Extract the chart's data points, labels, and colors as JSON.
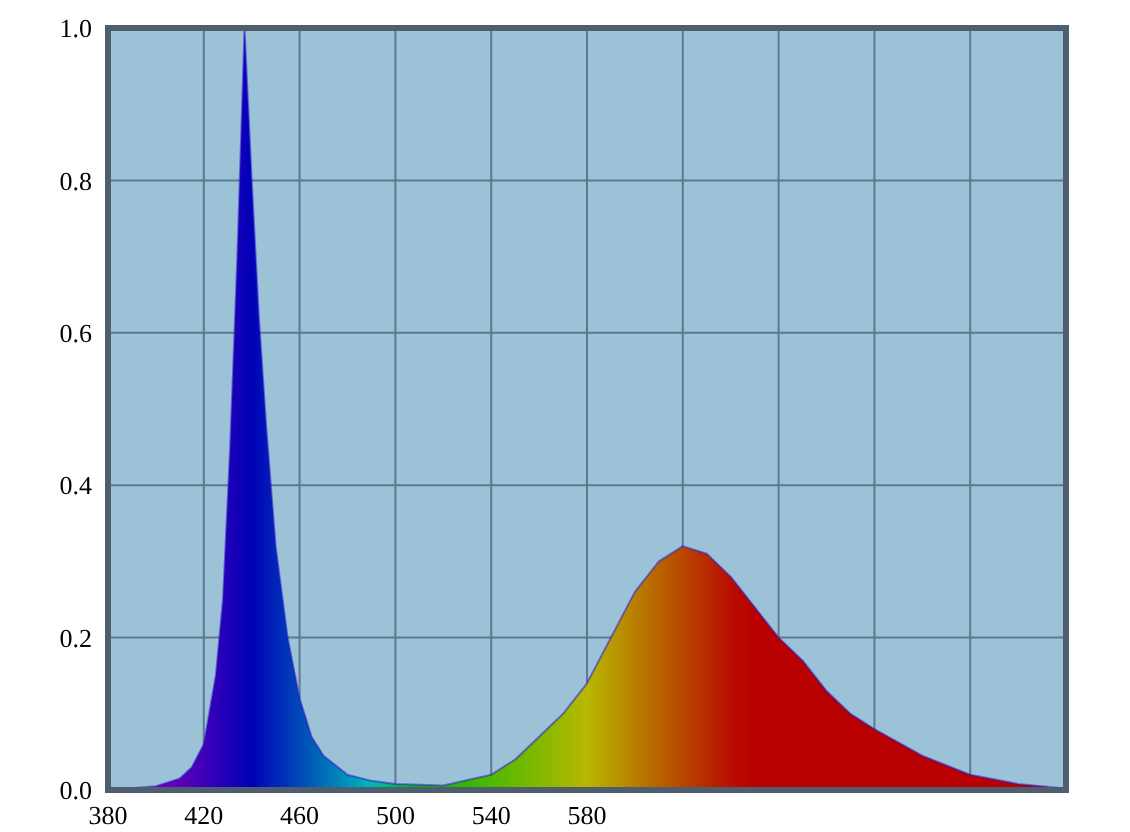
{
  "chart_data": {
    "type": "area",
    "x": [
      380,
      400,
      410,
      415,
      420,
      425,
      428,
      431,
      434,
      437,
      440,
      443,
      446,
      450,
      455,
      460,
      465,
      470,
      480,
      490,
      500,
      520,
      540,
      550,
      560,
      570,
      580,
      590,
      600,
      610,
      620,
      630,
      640,
      650,
      660,
      670,
      680,
      690,
      700,
      720,
      740,
      760,
      780
    ],
    "series": [
      {
        "color": "#2a0fc8",
        "values": [
          0,
          0.005,
          0.015,
          0.03,
          0.06,
          0.15,
          0.25,
          0.45,
          0.7,
          1.0,
          0.8,
          0.62,
          0.48,
          0.32,
          0.2,
          0.12,
          0.07,
          0.045,
          0.02,
          0.012,
          0.008,
          0.006,
          0.02,
          0.04,
          0.07,
          0.1,
          0.14,
          0.2,
          0.26,
          0.3,
          0.32,
          0.31,
          0.28,
          0.24,
          0.2,
          0.17,
          0.13,
          0.1,
          0.08,
          0.045,
          0.02,
          0.008,
          0.002
        ]
      }
    ],
    "xlim": [
      380,
      780
    ],
    "xticks": [
      380,
      420,
      460,
      500,
      540,
      580,
      {
        "value": 620,
        "label": null
      },
      {
        "value": 660,
        "label": null
      },
      {
        "value": 700,
        "label": null
      },
      {
        "value": 740,
        "label": null
      }
    ],
    "ylim": [
      0,
      1
    ],
    "yticks": [
      {
        "value": 0,
        "label": "0.0"
      },
      {
        "value": 0.2,
        "label": "0.2"
      },
      {
        "value": 0.4,
        "label": "0.4"
      },
      {
        "value": 0.6,
        "label": "0.6"
      },
      {
        "value": 0.8,
        "label": "0.8"
      },
      {
        "value": 1,
        "label": "1.0"
      }
    ],
    "grid": true
  }
}
